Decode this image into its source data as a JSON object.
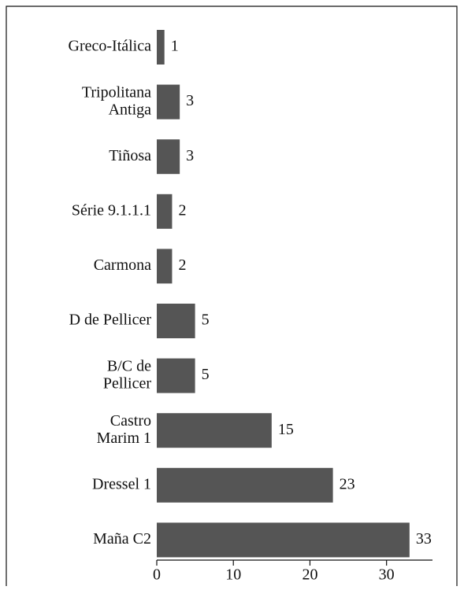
{
  "chart_data": {
    "type": "barh",
    "categories": [
      "Greco-Itálica",
      "Tripolitana\nAntiga",
      "Tiñosa",
      "Série 9.1.1.1",
      "Carmona",
      "D de Pellicer",
      "B/C de\nPellicer",
      "Castro\nMarim 1",
      "Dressel 1",
      "Maña C2"
    ],
    "values": [
      1,
      3,
      3,
      2,
      2,
      5,
      5,
      15,
      23,
      33
    ],
    "color": "#555555",
    "xlim": [
      0,
      36
    ],
    "xticks": [
      0,
      10,
      20,
      30
    ]
  }
}
